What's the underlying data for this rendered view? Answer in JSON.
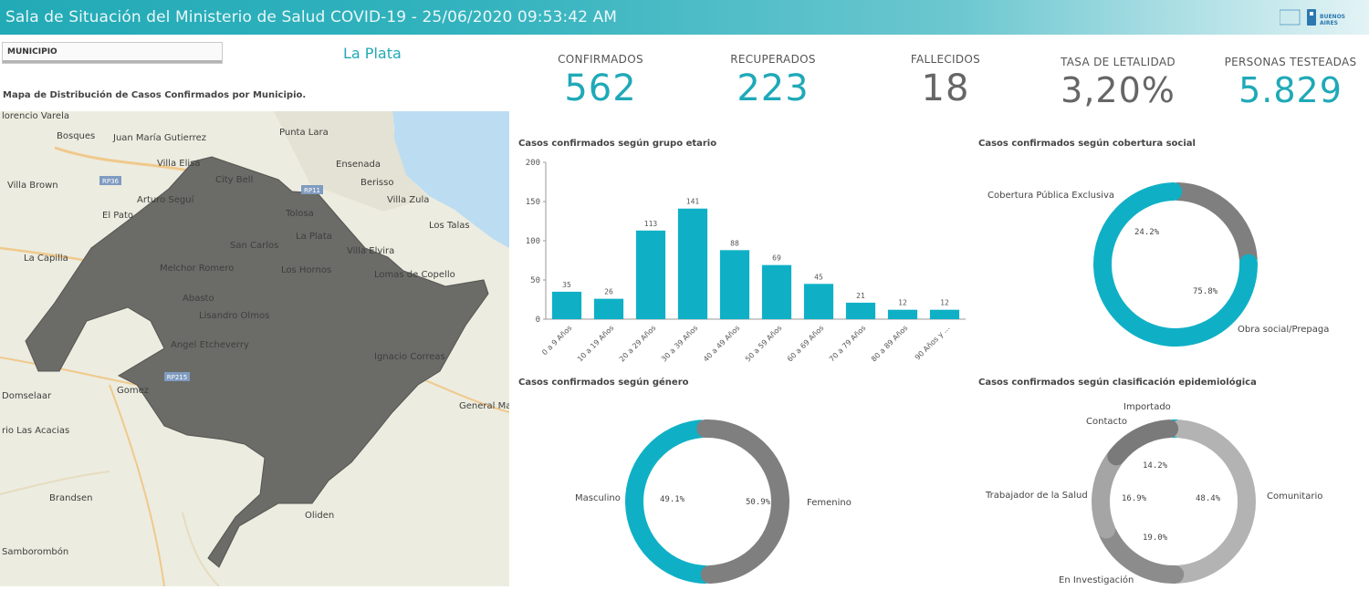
{
  "header": {
    "title": "Sala de Situación del Ministerio de Salud COVID-19 - 25/06/2020 09:53:42 AM",
    "logo_text": "BUENOS AIRES",
    "logo_icon": "province-logo"
  },
  "filter": {
    "label": "MUNICIPIO",
    "selected": "La Plata"
  },
  "map": {
    "title": "Mapa de Distribución de Casos Confirmados por Municipio.",
    "places": [
      "lorencio Varela",
      "Bosques",
      "Juan María Gutierrez",
      "Punta Lara",
      "Villa Elisa",
      "Ensenada",
      "City Bell",
      "Berisso",
      "Villa Brown",
      "Arturo Seguí",
      "Villa Zula",
      "El Pato",
      "Tolosa",
      "Los Talas",
      "La Plata",
      "San Carlos",
      "Villa Elvira",
      "La Capilla",
      "Melchor Romero",
      "Los Hornos",
      "Lomas de Copello",
      "Abasto",
      "Lisandro Olmos",
      "Angel Etcheverry",
      "Ignacio Correas",
      "Domselaar",
      "Gomez",
      "General Ma",
      "rio Las Acacias",
      "Brandsen",
      "Oliden",
      "Samborombón"
    ],
    "road_labels": [
      "RP36",
      "RP11",
      "RP215"
    ]
  },
  "kpis": [
    {
      "label": "CONFIRMADOS",
      "value": "562",
      "color": "#1fa9b8"
    },
    {
      "label": "RECUPERADOS",
      "value": "223",
      "color": "#1fa9b8"
    },
    {
      "label": "FALLECIDOS",
      "value": "18",
      "color": "#666666"
    },
    {
      "label": "TASA DE LETALIDAD",
      "value": "3,20%",
      "color": "#666666"
    },
    {
      "label": "PERSONAS TESTEADAS",
      "value": "5.829",
      "color": "#1fa9b8"
    }
  ],
  "chart_data": [
    {
      "type": "bar",
      "title": "Casos confirmados según grupo etario",
      "categories": [
        "0 a 9 Años",
        "10 a 19 Años",
        "20 a 29 Años",
        "30 a 39 Años",
        "40 a 49 Años",
        "50 a 59 Años",
        "60 a 69 Años",
        "70 a 79 Años",
        "80 a 89 Años",
        "90 Años y ..."
      ],
      "values": [
        35,
        26,
        113,
        141,
        88,
        69,
        45,
        21,
        12,
        12
      ],
      "yticks": [
        0,
        50,
        100,
        150,
        200
      ],
      "ylim": [
        0,
        200
      ],
      "color": "#0fb0c6",
      "grid": false
    },
    {
      "type": "pie",
      "title": "Casos confirmados según cobertura social",
      "categories": [
        "Cobertura Pública Exclusiva",
        "Obra social/Prepaga"
      ],
      "values": [
        24.2,
        75.8
      ],
      "value_labels": [
        "24.2%",
        "75.8%"
      ],
      "colors": [
        "#7f7f7f",
        "#0fb0c6"
      ]
    },
    {
      "type": "pie",
      "title": "Casos confirmados según género",
      "categories": [
        "Masculino",
        "Femenino"
      ],
      "values": [
        49.1,
        50.9
      ],
      "value_labels": [
        "49.1%",
        "50.9%"
      ],
      "colors": [
        "#0fb0c6",
        "#7f7f7f"
      ]
    },
    {
      "type": "pie",
      "title": "Casos confirmados según clasificación epidemiológica",
      "categories": [
        "Importado",
        "Comunitario",
        "En Investigación",
        "Trabajador de la Salud",
        "Contacto"
      ],
      "values": [
        1.5,
        48.4,
        19.0,
        16.9,
        14.2
      ],
      "value_labels": [
        "",
        "48.4%",
        "19.0%",
        "16.9%",
        "14.2%"
      ],
      "colors": [
        "#0fb0c6",
        "#b3b3b3",
        "#8c8c8c",
        "#a5a5a5",
        "#7a7a7a"
      ]
    }
  ]
}
